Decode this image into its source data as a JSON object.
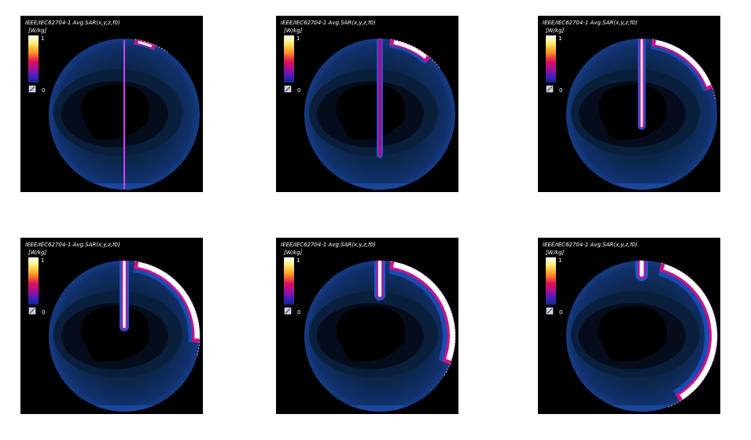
{
  "panels": [
    {
      "title": "IEEE/IEC62704-1 Avg.SAR(x,y,z,f0)",
      "unit": "[W/kg]",
      "scale_max": "1",
      "scale_min": "0"
    },
    {
      "title": "IEEE/IEC62704-1 Avg.SAR(x,y,z,f0)",
      "unit": "[W/kg]",
      "scale_max": "1",
      "scale_min": "0"
    },
    {
      "title": "IEEE/IEC62704-1 Avg.SAR(x,y,z,f0)",
      "unit": "[W/kg]",
      "scale_max": "1",
      "scale_min": "0"
    },
    {
      "title": "IEEE/IEC62704-1 Avg.SAR(x,y,z,f0)",
      "unit": "[W/kg]",
      "scale_max": "1",
      "scale_min": "0"
    },
    {
      "title": "IEEE/IEC62704-1 Avg.SAR(x,y,z,f0)",
      "unit": "[W/kg]",
      "scale_max": "1",
      "scale_min": "0"
    },
    {
      "title": "IEEE/IEC62704-1 Avg.SAR(x,y,z,f0)",
      "unit": "[W/kg]",
      "scale_max": "1",
      "scale_min": "0"
    }
  ]
}
